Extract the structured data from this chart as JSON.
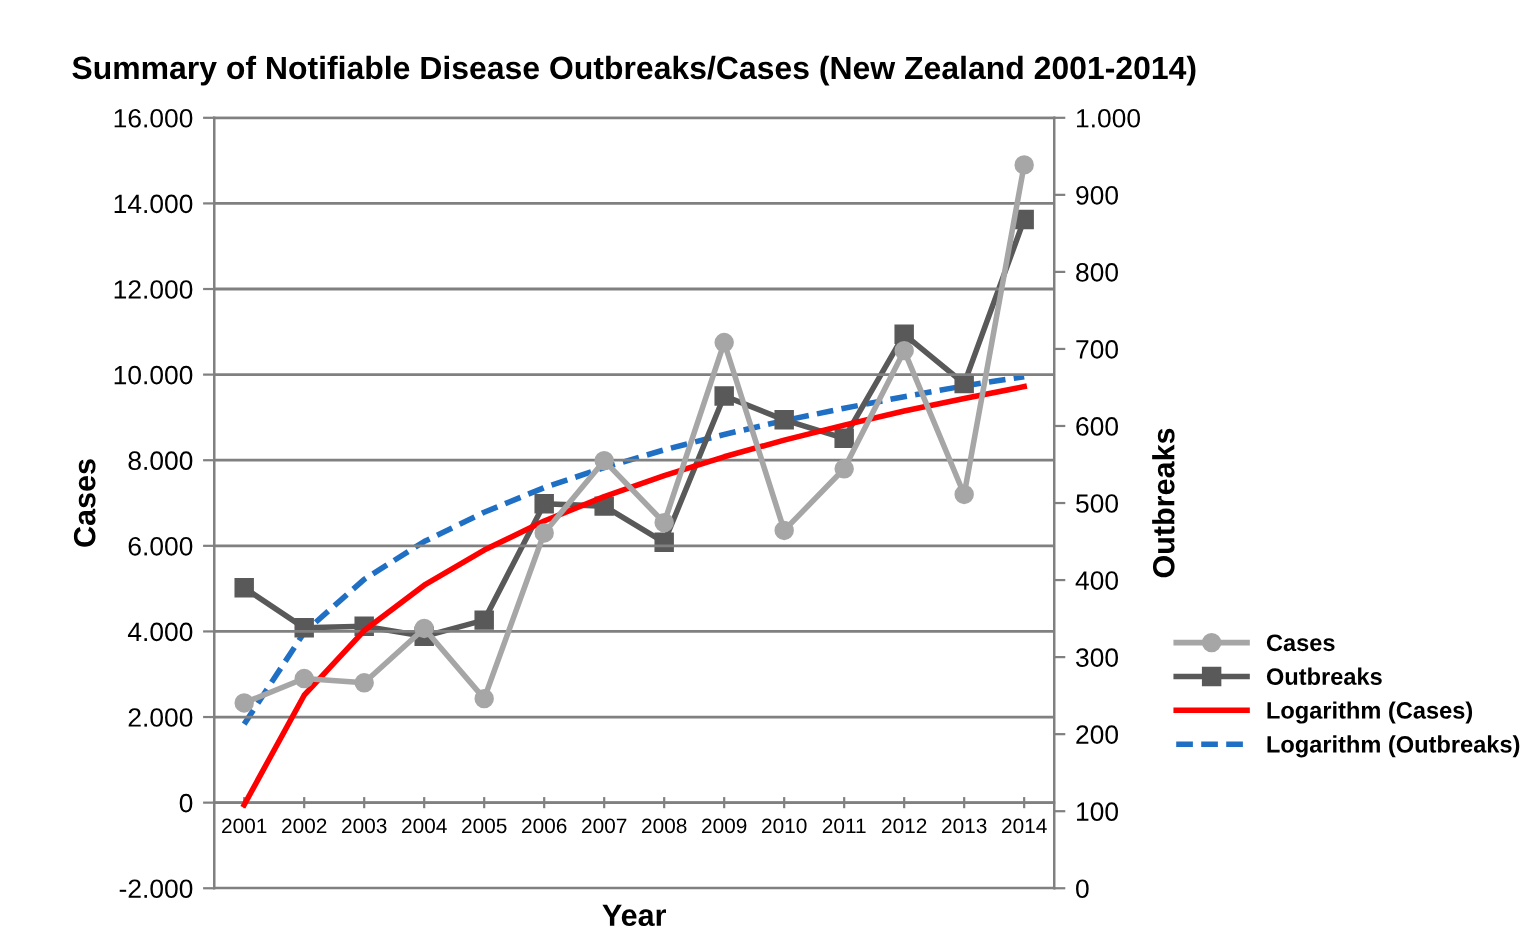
{
  "chart_data": {
    "type": "line",
    "title": "Summary of Notifiable Disease Outbreaks/Cases (New Zealand 2001-2014)",
    "xlabel": "Year",
    "ylabel": "Cases",
    "y2label": "Outbreaks",
    "categories": [
      "2001",
      "2002",
      "2003",
      "2004",
      "2005",
      "2006",
      "2007",
      "2008",
      "2009",
      "2010",
      "2011",
      "2012",
      "2013",
      "2014"
    ],
    "series": [
      {
        "name": "Cases",
        "color": "#a6a6a6",
        "marker": "circle",
        "line_style": "solid",
        "values": [
          2330,
          2900,
          2800,
          4070,
          2430,
          6300,
          7990,
          6540,
          10750,
          6360,
          7800,
          10560,
          7200,
          14900
        ]
      },
      {
        "name": "Outbreaks",
        "color": "#595959",
        "marker": "square",
        "line_style": "solid",
        "axis": "y2",
        "values": [
          390,
          338,
          340,
          327,
          348,
          499,
          496,
          449,
          639,
          608,
          584,
          719,
          655,
          868
        ]
      },
      {
        "name": "Logarithm (Cases)",
        "color": "#ff0000",
        "marker": "none",
        "line_style": "solid",
        "values": [
          -50,
          2510,
          4020,
          5080,
          5900,
          6580,
          7150,
          7640,
          8080,
          8470,
          8820,
          9150,
          9440,
          9720
        ]
      },
      {
        "name": "Logarithm (Outbreaks)",
        "color": "#1f6fc5",
        "marker": "none",
        "line_style": "dashed",
        "axis": "y2",
        "values": [
          213,
          332,
          401,
          450,
          488,
          520,
          546,
          569,
          589,
          607,
          623,
          638,
          652,
          664
        ]
      }
    ],
    "ylim": [
      -2000,
      16000
    ],
    "yticks": [
      {
        "value": -2000,
        "label": "-2.000"
      },
      0,
      {
        "value": 2000,
        "label": "2.000"
      },
      {
        "value": 4000,
        "label": "4.000"
      },
      {
        "value": 6000,
        "label": "6.000"
      },
      {
        "value": 8000,
        "label": "8.000"
      },
      {
        "value": 10000,
        "label": "10.000"
      },
      {
        "value": 12000,
        "label": "12.000"
      },
      {
        "value": 14000,
        "label": "14.000"
      },
      {
        "value": 16000,
        "label": "16.000"
      }
    ],
    "y2lim": [
      0,
      1000
    ],
    "y2ticks": [
      0,
      100,
      200,
      300,
      400,
      500,
      600,
      700,
      800,
      900,
      {
        "value": 1000,
        "label": "1.000"
      }
    ],
    "grid": "y",
    "legend": "right"
  }
}
